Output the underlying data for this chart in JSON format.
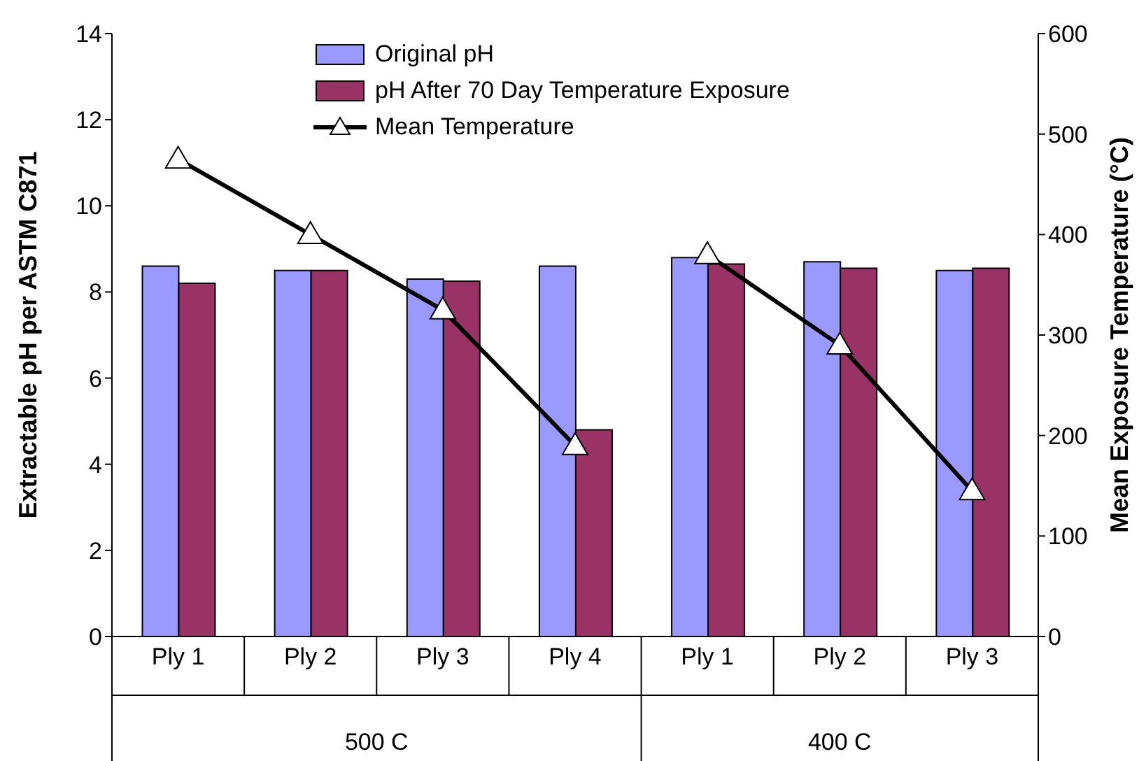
{
  "chart_data": {
    "type": "bar",
    "categories": [
      "Ply 1",
      "Ply 2",
      "Ply 3",
      "Ply 4",
      "Ply 1",
      "Ply 2",
      "Ply 3"
    ],
    "ylabel": "Extractable pH per ASTM C871",
    "y2label": "Mean Exposure Temperature (°C)",
    "ylim": [
      0,
      14
    ],
    "yticks": [
      0,
      2,
      4,
      6,
      8,
      10,
      12,
      14
    ],
    "y2lim": [
      0,
      600
    ],
    "y2ticks": [
      0,
      100,
      200,
      300,
      400,
      500,
      600
    ],
    "annotations": [
      "500 C",
      "400 C"
    ],
    "legend": "top",
    "grid": false,
    "marker": "triangle",
    "line_style": "solid",
    "series": [
      {
        "name": "Original pH",
        "color": "#9999ff",
        "values": [
          8.6,
          8.5,
          8.3,
          8.6,
          8.8,
          8.7,
          8.5
        ]
      },
      {
        "name": "pH After 70 Day Temperature Exposure",
        "color": "#993366",
        "values": [
          8.2,
          8.5,
          8.25,
          4.8,
          8.65,
          8.55,
          8.55
        ]
      },
      {
        "name": "Mean Temperature",
        "type": "line",
        "axis": "y2",
        "color": "#000000",
        "values": [
          475,
          400,
          325,
          190,
          null,
          null,
          null
        ]
      },
      {
        "type": "line",
        "axis": "y2",
        "color": "#000000",
        "values": [
          null,
          null,
          null,
          null,
          380,
          290,
          145
        ]
      }
    ]
  }
}
